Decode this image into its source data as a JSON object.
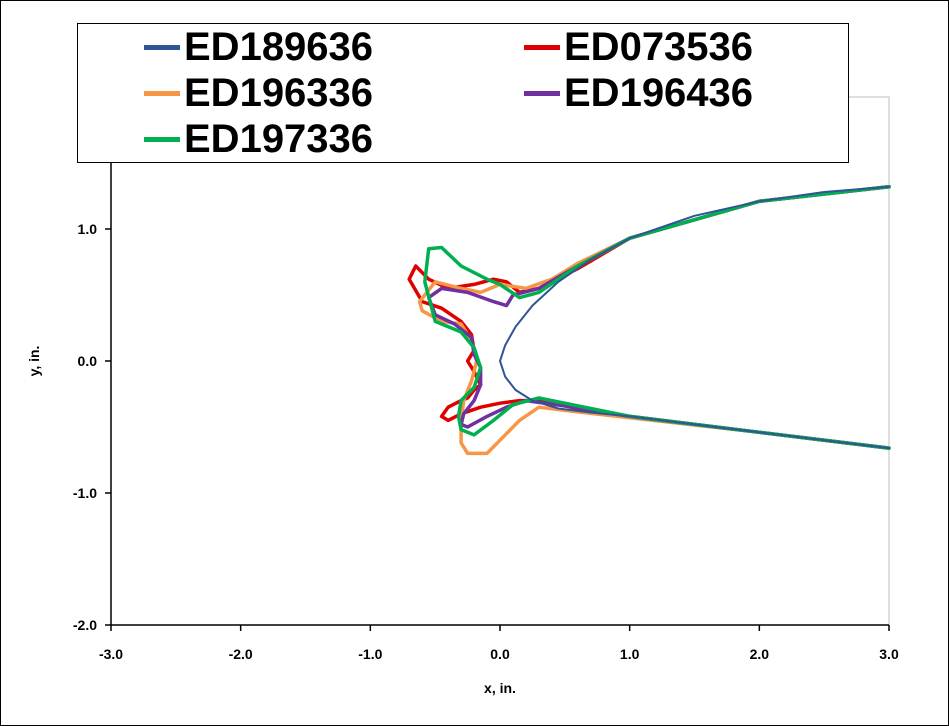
{
  "chart_data": {
    "type": "line",
    "xlabel": "x, in.",
    "ylabel": "y, in.",
    "xlim": [
      -3.0,
      3.0
    ],
    "ylim": [
      -2.0,
      2.0
    ],
    "x_ticks": [
      "-3.0",
      "-2.0",
      "-1.0",
      "0.0",
      "1.0",
      "2.0",
      "3.0"
    ],
    "y_ticks": [
      "-2.0",
      "-1.0",
      "0.0",
      "1.0",
      "2"
    ],
    "grid": false,
    "legend_position": "top",
    "series": [
      {
        "name": "ED189636",
        "color": "#2f5597",
        "x": [
          3.0,
          2.5,
          2.0,
          1.5,
          1.0,
          0.7,
          0.45,
          0.25,
          0.12,
          0.04,
          0.0,
          0.04,
          0.12,
          0.25,
          0.45,
          0.7,
          1.0,
          1.5,
          2.0,
          2.5,
          3.0
        ],
        "y": [
          1.32,
          1.28,
          1.21,
          1.1,
          0.93,
          0.77,
          0.6,
          0.42,
          0.26,
          0.12,
          0.0,
          -0.12,
          -0.22,
          -0.3,
          -0.36,
          -0.39,
          -0.42,
          -0.48,
          -0.54,
          -0.6,
          -0.66
        ]
      },
      {
        "name": "ED073536",
        "color": "#e00000",
        "x": [
          3.0,
          2.0,
          1.0,
          0.6,
          0.3,
          0.15,
          0.05,
          -0.05,
          -0.2,
          -0.4,
          -0.55,
          -0.65,
          -0.7,
          -0.6,
          -0.45,
          -0.3,
          -0.22,
          -0.2,
          -0.25,
          -0.2,
          -0.15,
          -0.2,
          -0.25,
          -0.3,
          -0.4,
          -0.45,
          -0.4,
          -0.3,
          -0.15,
          0.0,
          0.15,
          0.3,
          0.6,
          1.0,
          2.0,
          3.0
        ],
        "y": [
          1.32,
          1.21,
          0.93,
          0.7,
          0.55,
          0.52,
          0.6,
          0.62,
          0.58,
          0.55,
          0.62,
          0.72,
          0.62,
          0.45,
          0.4,
          0.3,
          0.2,
          0.08,
          0.0,
          -0.08,
          -0.18,
          -0.22,
          -0.28,
          -0.3,
          -0.35,
          -0.42,
          -0.45,
          -0.4,
          -0.35,
          -0.32,
          -0.3,
          -0.3,
          -0.36,
          -0.42,
          -0.54,
          -0.66
        ]
      },
      {
        "name": "ED196336",
        "color": "#f79646",
        "x": [
          3.0,
          2.0,
          1.0,
          0.6,
          0.4,
          0.2,
          0.0,
          -0.15,
          -0.3,
          -0.5,
          -0.62,
          -0.6,
          -0.45,
          -0.3,
          -0.25,
          -0.2,
          -0.18,
          -0.22,
          -0.28,
          -0.3,
          -0.3,
          -0.25,
          -0.1,
          0.0,
          0.15,
          0.3,
          0.55,
          1.0,
          2.0,
          3.0
        ],
        "y": [
          1.32,
          1.21,
          0.93,
          0.74,
          0.62,
          0.55,
          0.58,
          0.52,
          0.55,
          0.6,
          0.45,
          0.38,
          0.3,
          0.28,
          0.2,
          0.1,
          0.0,
          -0.15,
          -0.3,
          -0.45,
          -0.62,
          -0.7,
          -0.7,
          -0.6,
          -0.45,
          -0.35,
          -0.38,
          -0.43,
          -0.54,
          -0.66
        ]
      },
      {
        "name": "ED196436",
        "color": "#7030a0",
        "x": [
          3.0,
          2.0,
          1.0,
          0.6,
          0.3,
          0.1,
          0.05,
          -0.05,
          -0.25,
          -0.45,
          -0.55,
          -0.5,
          -0.35,
          -0.22,
          -0.2,
          -0.15,
          -0.15,
          -0.2,
          -0.28,
          -0.3,
          -0.25,
          -0.1,
          0.05,
          0.2,
          0.5,
          1.0,
          2.0,
          3.0
        ],
        "y": [
          1.32,
          1.21,
          0.93,
          0.72,
          0.55,
          0.5,
          0.42,
          0.45,
          0.52,
          0.55,
          0.48,
          0.35,
          0.28,
          0.18,
          0.05,
          -0.05,
          -0.18,
          -0.3,
          -0.4,
          -0.48,
          -0.5,
          -0.42,
          -0.35,
          -0.3,
          -0.34,
          -0.42,
          -0.54,
          -0.66
        ]
      },
      {
        "name": "ED197336",
        "color": "#00b050",
        "x": [
          3.0,
          2.0,
          1.0,
          0.6,
          0.3,
          0.15,
          0.0,
          -0.1,
          -0.3,
          -0.45,
          -0.55,
          -0.58,
          -0.5,
          -0.3,
          -0.2,
          -0.15,
          -0.2,
          -0.3,
          -0.32,
          -0.3,
          -0.2,
          -0.05,
          0.1,
          0.3,
          0.6,
          1.0,
          2.0,
          3.0
        ],
        "y": [
          1.32,
          1.21,
          0.93,
          0.72,
          0.52,
          0.48,
          0.58,
          0.62,
          0.72,
          0.86,
          0.85,
          0.6,
          0.3,
          0.22,
          0.1,
          -0.05,
          -0.2,
          -0.3,
          -0.42,
          -0.52,
          -0.56,
          -0.45,
          -0.33,
          -0.28,
          -0.34,
          -0.42,
          -0.54,
          -0.66
        ]
      }
    ]
  }
}
